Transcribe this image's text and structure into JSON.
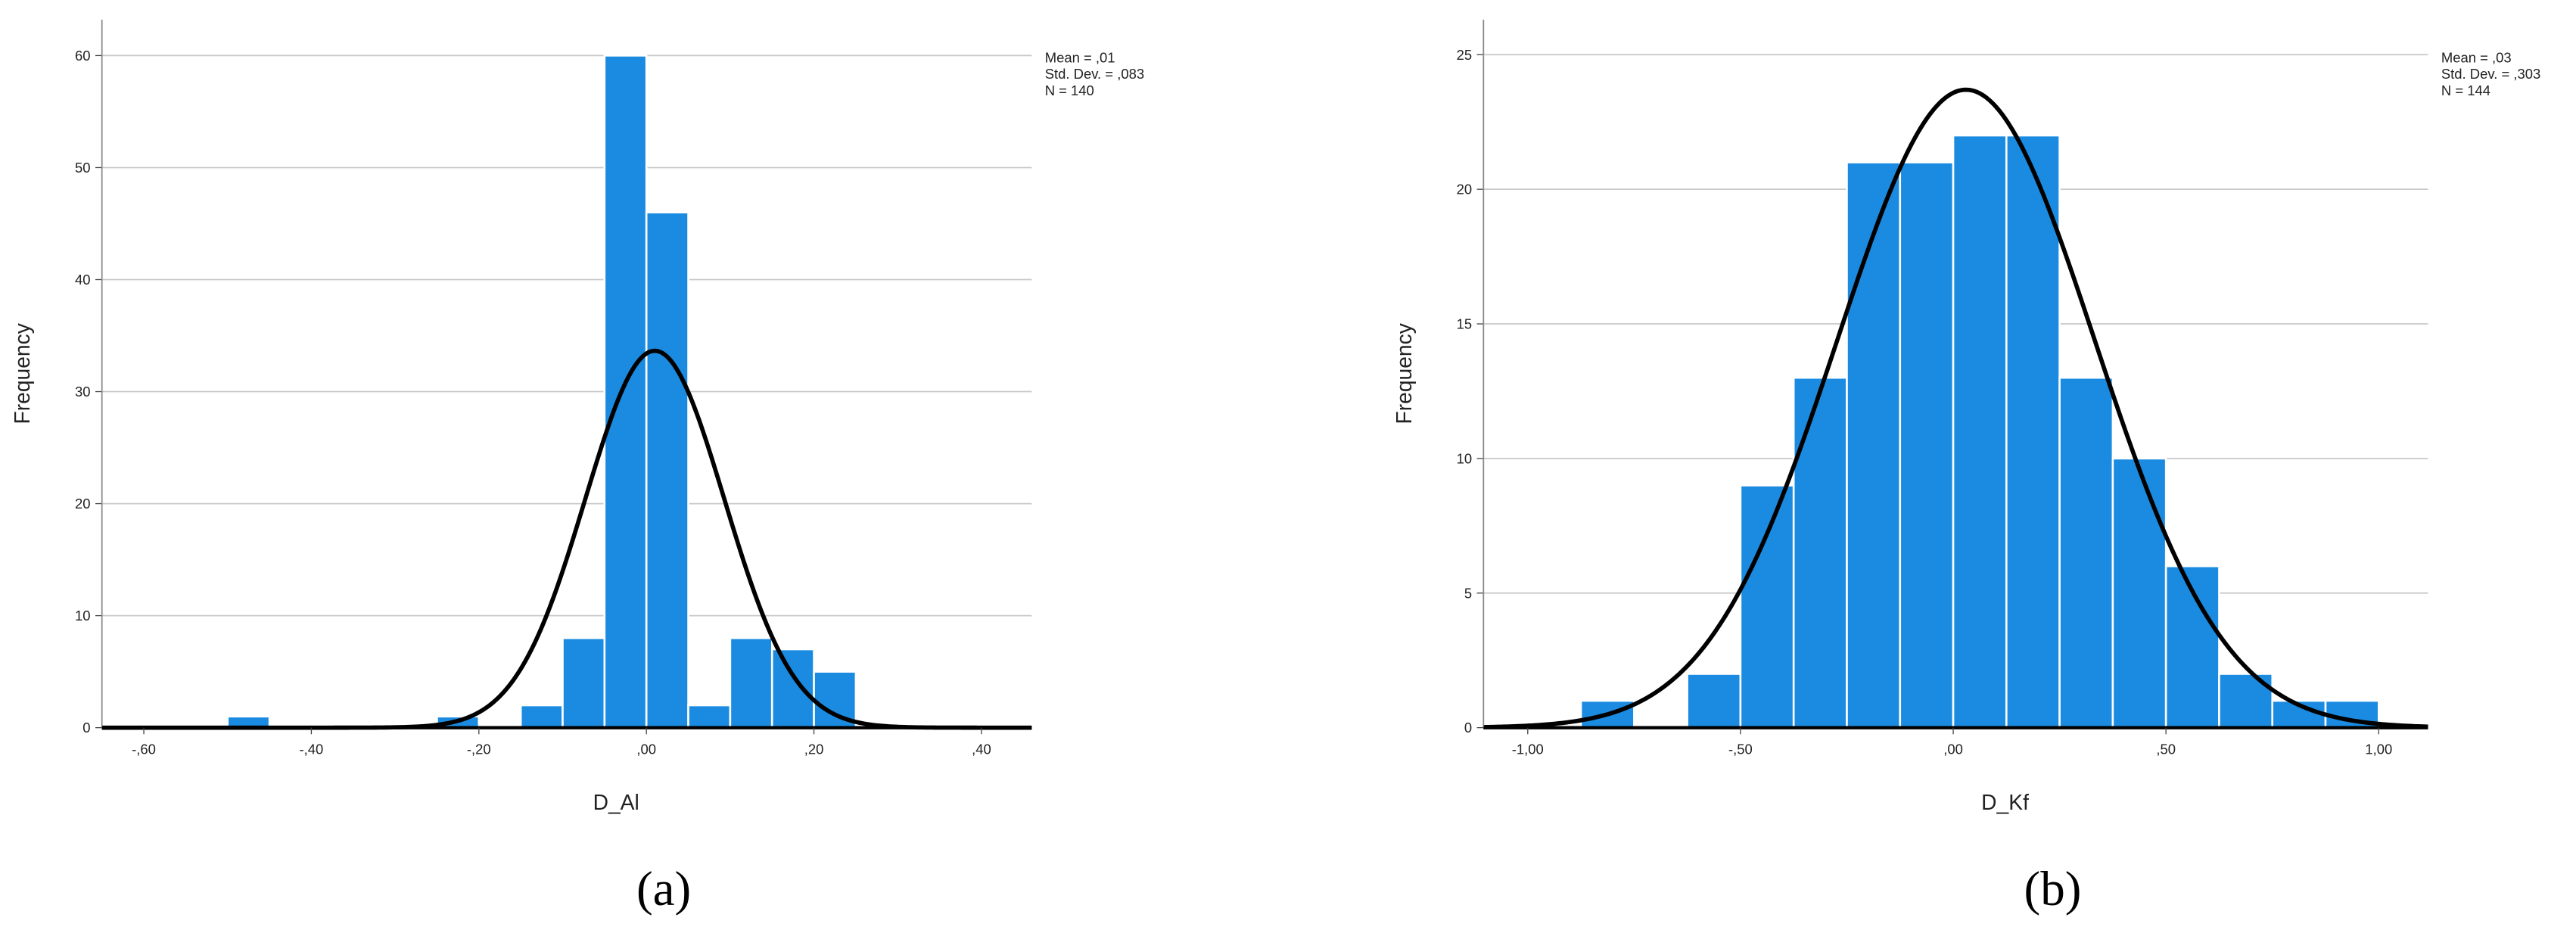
{
  "chart_data": [
    {
      "type": "histogram",
      "y_label": "Frequency",
      "x_label": "D_Al",
      "caption": "(a)",
      "bins": [
        -0.5,
        -0.45,
        -0.4,
        -0.35,
        -0.3,
        -0.25,
        -0.2,
        -0.15,
        -0.1,
        -0.05,
        0,
        0.05,
        0.1,
        0.15,
        0.2,
        0.25
      ],
      "values": [
        1,
        0,
        0,
        0,
        0,
        1,
        0,
        2,
        8,
        60,
        46,
        2,
        8,
        7,
        5
      ],
      "color": "#1a8be0",
      "curve_color": "#000000",
      "grid": true,
      "xlim": [
        -0.65,
        0.46
      ],
      "ylim": [
        0,
        63.2
      ],
      "xticks": [
        {
          "value": -0.6,
          "label": "-,60"
        },
        {
          "value": -0.4,
          "label": "-,40"
        },
        {
          "value": -0.2,
          "label": "-,20"
        },
        {
          "value": 0,
          "label": ",00"
        },
        {
          "value": 0.2,
          "label": ",20"
        },
        {
          "value": 0.4,
          "label": ",40"
        }
      ],
      "yticks": [
        0,
        10,
        20,
        30,
        40,
        50,
        60
      ],
      "stats": [
        {
          "value": 0.01,
          "label": "Mean = ,01"
        },
        {
          "value": 0.083,
          "label": "Std. Dev. = ,083"
        },
        {
          "value": 140,
          "label": "N = 140"
        }
      ]
    },
    {
      "type": "histogram",
      "y_label": "Frequency",
      "x_label": "D_Kf",
      "caption": "(b)",
      "bins": [
        -0.875,
        -0.75,
        -0.625,
        -0.5,
        -0.375,
        -0.25,
        -0.125,
        0,
        0.125,
        0.25,
        0.375,
        0.5,
        0.625,
        0.75,
        0.875,
        1.0
      ],
      "values": [
        1,
        0,
        2,
        9,
        13,
        21,
        21,
        22,
        22,
        13,
        10,
        6,
        2,
        1,
        1
      ],
      "color": "#1a8be0",
      "curve_color": "#000000",
      "grid": true,
      "xlim": [
        -1.104,
        1.116
      ],
      "ylim": [
        0,
        26.3
      ],
      "xticks": [
        {
          "value": -1,
          "label": "-1,00"
        },
        {
          "value": -0.5,
          "label": "-,50"
        },
        {
          "value": 0,
          "label": ",00"
        },
        {
          "value": 0.5,
          "label": ",50"
        },
        {
          "value": 1,
          "label": "1,00"
        }
      ],
      "yticks": [
        0,
        5,
        10,
        15,
        20,
        25
      ],
      "stats": [
        {
          "value": 0.03,
          "label": "Mean = ,03"
        },
        {
          "value": 0.303,
          "label": "Std. Dev. = ,303"
        },
        {
          "value": 144,
          "label": "N = 144"
        }
      ]
    }
  ]
}
